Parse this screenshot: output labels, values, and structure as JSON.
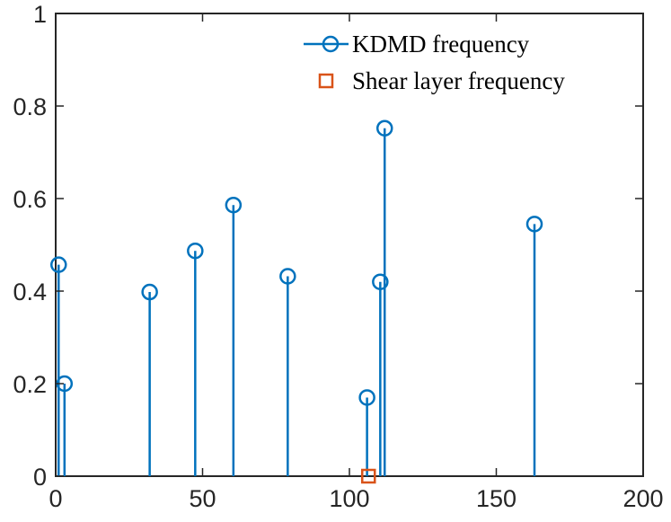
{
  "chart_data": {
    "type": "stem",
    "title": "",
    "xlabel": "",
    "ylabel": "",
    "xlim": [
      0,
      200
    ],
    "ylim": [
      0,
      1
    ],
    "x_ticks": [
      0,
      50,
      100,
      150,
      200
    ],
    "y_ticks": [
      0,
      0.2,
      0.4,
      0.6,
      0.8,
      1
    ],
    "x_tick_labels": [
      "0",
      "50",
      "100",
      "150",
      "200"
    ],
    "y_tick_labels": [
      "0",
      "0.2",
      "0.4",
      "0.6",
      "0.8",
      "1"
    ],
    "series": [
      {
        "name": "KDMD frequency",
        "marker": "circle",
        "color": "#0072BD",
        "x": [
          1,
          3,
          32,
          47.5,
          60.5,
          79,
          106,
          110.5,
          112,
          163
        ],
        "y": [
          0.457,
          0.2,
          0.398,
          0.487,
          0.586,
          0.432,
          0.17,
          0.42,
          0.752,
          0.545
        ]
      },
      {
        "name": "Shear layer frequency",
        "marker": "square",
        "color": "#D95319",
        "x": [
          106.5
        ],
        "y": [
          0
        ]
      }
    ],
    "legend": {
      "position": "top-right",
      "entries": [
        "KDMD frequency",
        "Shear layer frequency"
      ]
    }
  }
}
